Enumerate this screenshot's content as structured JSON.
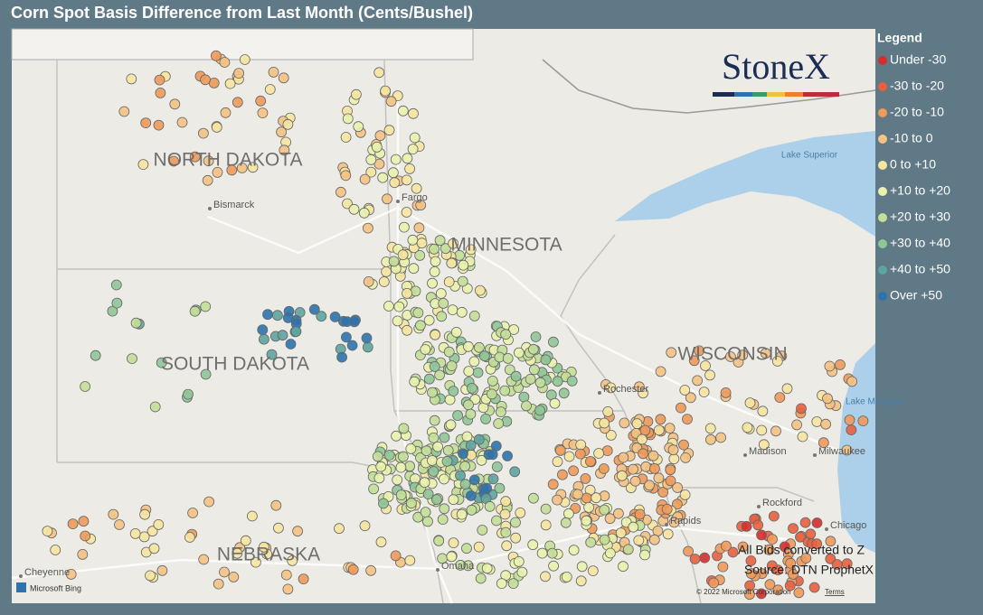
{
  "header": {
    "title": "Corn Spot Basis Difference from Last Month (Cents/Bushel)"
  },
  "legend": {
    "title": "Legend",
    "items": [
      {
        "label": "Under -30",
        "color": "#d62d2d"
      },
      {
        "label": "-30 to -20",
        "color": "#e8613f"
      },
      {
        "label": "-20 to -10",
        "color": "#ef9a5a"
      },
      {
        "label": "-10 to 0",
        "color": "#f4c283"
      },
      {
        "label": "0 to +10",
        "color": "#f6e6a0"
      },
      {
        "label": "+10 to +20",
        "color": "#eaf2ad"
      },
      {
        "label": "+20 to +30",
        "color": "#c3df98"
      },
      {
        "label": "+30 to +40",
        "color": "#8fc597"
      },
      {
        "label": "+40 to +50",
        "color": "#5ea49f"
      },
      {
        "label": "Over +50",
        "color": "#2e73ad"
      }
    ]
  },
  "logo": "StoneX",
  "map": {
    "states": [
      "NORTH DAKOTA",
      "MINNESOTA",
      "SOUTH DAKOTA",
      "WISCONSIN",
      "NEBRASKA"
    ],
    "places": [
      "Bismarck",
      "Fargo",
      "Rochester",
      "Madison",
      "Milwaukee",
      "Rockford",
      "Chicago",
      "Rapids",
      "Omaha",
      "Cheyenne"
    ],
    "water": [
      "Lake Superior",
      "Lake Michigan"
    ]
  },
  "notes": [
    "All Bids converted to Z",
    "Source: DTN ProphetX"
  ],
  "attribution": {
    "provider": "Microsoft Bing",
    "copyright": "© 2022 Microsoft Corporation",
    "terms": "Terms"
  }
}
